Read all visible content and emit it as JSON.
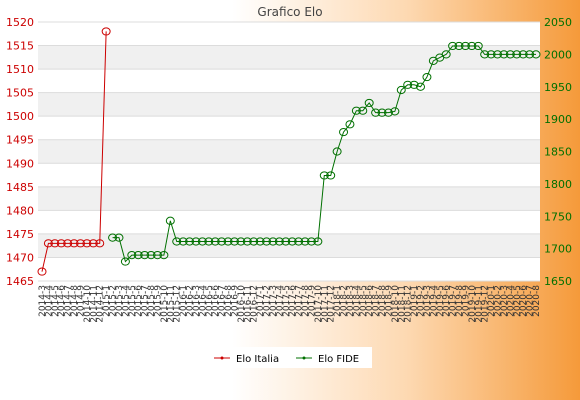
{
  "chart_data": {
    "type": "line",
    "title": "Grafico Elo",
    "colors": {
      "italia": "#cc0000",
      "fide": "#007000",
      "grid_band": "#f0f0f0",
      "plot_bg": "#ffffff"
    },
    "left_axis": {
      "min": 1465,
      "max": 1520,
      "step": 5
    },
    "right_axis": {
      "min": 1650,
      "max": 2050,
      "step": 50
    },
    "grid": true,
    "legend_position": "bottom",
    "x_count": 78,
    "x_tick_labels": [
      "2014-3",
      "2014-4",
      "2014-5",
      "2014-6",
      "2014-7",
      "2014-8",
      "2014-9",
      "2014-10",
      "2014-11",
      "2014-12",
      "2015-1",
      "2015-2",
      "2015-3",
      "2015-4",
      "2015-5",
      "2015-6",
      "2015-7",
      "2015-8",
      "2015-9",
      "2015-10",
      "2015-11",
      "2015-12",
      "2016-1",
      "2016-2",
      "2016-3",
      "2016-4",
      "2016-5",
      "2016-6",
      "2016-7",
      "2016-8",
      "2016-9",
      "2016-10",
      "2016-11",
      "2016-12",
      "2017-1",
      "2017-2",
      "2017-3",
      "2017-4",
      "2017-5",
      "2017-6",
      "2017-7",
      "2017-8",
      "2017-9",
      "2017-10",
      "2017-11",
      "2017-12",
      "2018-1",
      "2018-2",
      "2018-3",
      "2018-4",
      "2018-5",
      "2018-6",
      "2018-7",
      "2018-8",
      "2018-9",
      "2018-10",
      "2018-11",
      "2018-12",
      "2019-1",
      "2019-2",
      "2019-3",
      "2019-4",
      "2019-5",
      "2019-6",
      "2019-7",
      "2019-8",
      "2019-9",
      "2019-10",
      "2019-11",
      "2019-12",
      "2020-1",
      "2020-2",
      "2020-3",
      "2020-4",
      "2020-5",
      "2020-6",
      "2020-7",
      "2020-8"
    ],
    "series": [
      {
        "name": "Elo Italia",
        "axis": "left",
        "x": [
          0,
          1,
          2,
          3,
          4,
          5,
          6,
          7,
          8,
          9,
          10
        ],
        "values": [
          1467,
          1473,
          1473,
          1473,
          1473,
          1473,
          1473,
          1473,
          1473,
          1473,
          1518
        ]
      },
      {
        "name": "Elo FIDE",
        "axis": "right",
        "x": [
          11,
          12,
          13,
          14,
          15,
          16,
          17,
          18,
          19,
          20,
          21,
          22,
          23,
          24,
          25,
          26,
          27,
          28,
          29,
          30,
          31,
          32,
          33,
          34,
          35,
          36,
          37,
          38,
          39,
          40,
          41,
          42,
          43,
          44,
          45,
          46,
          47,
          48,
          49,
          50,
          51,
          52,
          53,
          54,
          55,
          56,
          57,
          58,
          59,
          60,
          61,
          62,
          63,
          64,
          65,
          66,
          67,
          68,
          69,
          70,
          71,
          72,
          73,
          74,
          75,
          76,
          77
        ],
        "values": [
          1717,
          1717,
          1680,
          1690,
          1690,
          1690,
          1690,
          1690,
          1690,
          1743,
          1711,
          1711,
          1711,
          1711,
          1711,
          1711,
          1711,
          1711,
          1711,
          1711,
          1711,
          1711,
          1711,
          1711,
          1711,
          1711,
          1711,
          1711,
          1711,
          1711,
          1711,
          1711,
          1711,
          1813,
          1813,
          1850,
          1880,
          1892,
          1913,
          1913,
          1925,
          1910,
          1910,
          1910,
          1912,
          1945,
          1953,
          1953,
          1950,
          1965,
          1990,
          1995,
          2000,
          2013,
          2013,
          2013,
          2013,
          2013,
          2000,
          2000,
          2000,
          2000,
          2000,
          2000,
          2000,
          2000,
          2000
        ]
      }
    ]
  },
  "legend": [
    {
      "label": "Elo Italia"
    },
    {
      "label": "Elo FIDE"
    }
  ]
}
